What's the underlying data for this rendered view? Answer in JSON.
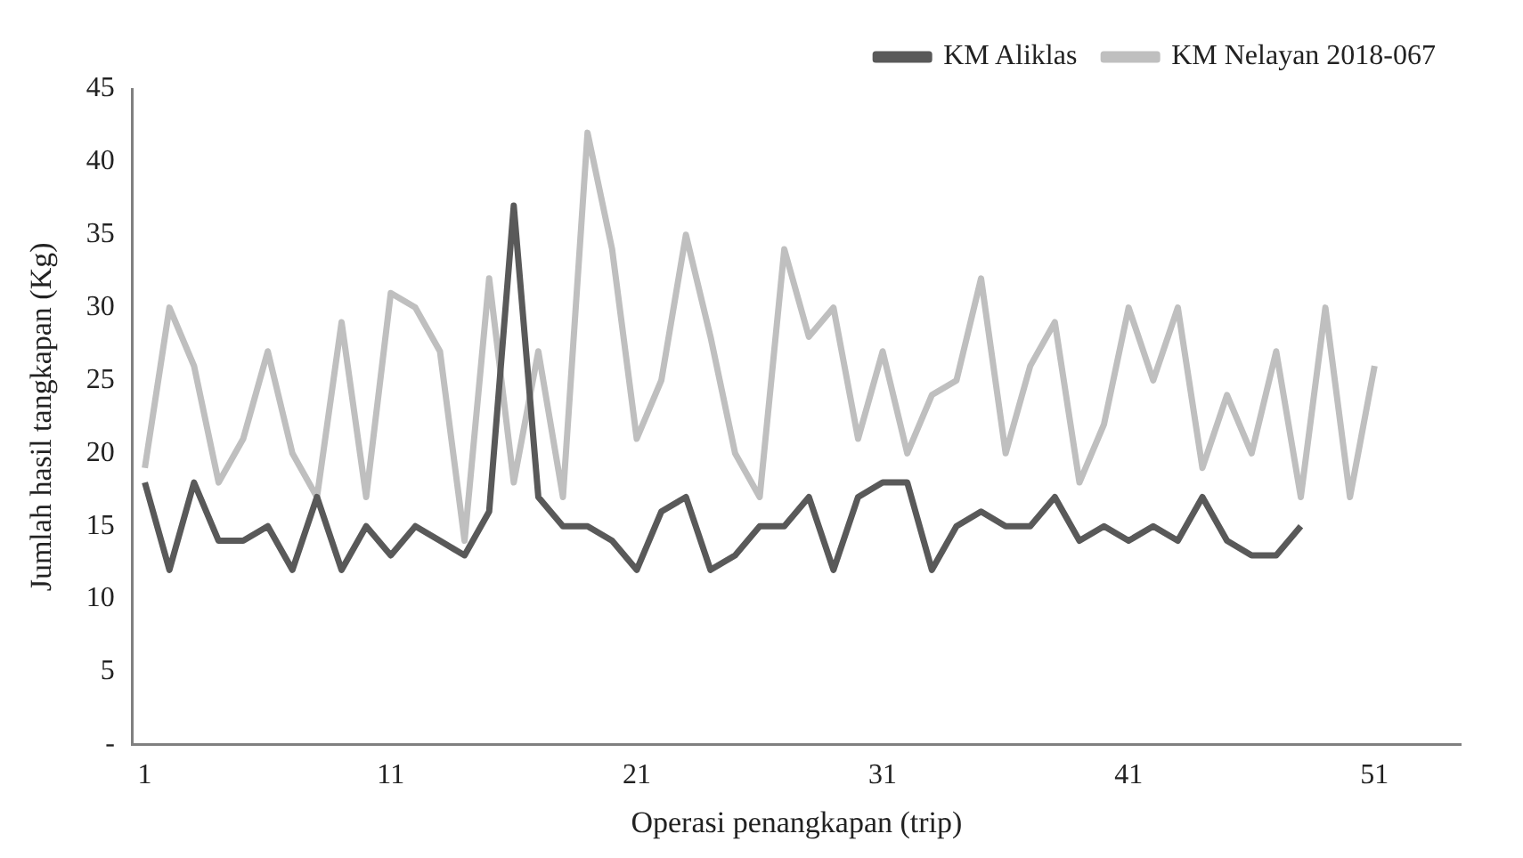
{
  "chart_data": {
    "type": "line",
    "xlabel": "Operasi penangkapan (trip)",
    "ylabel": "Jumlah hasil tangkapan (Kg)",
    "xlim": [
      0.5,
      54.5
    ],
    "xticks": [
      1,
      11,
      21,
      31,
      41,
      51
    ],
    "ylim": [
      0,
      45
    ],
    "yticks": [
      {
        "value": 0,
        "label": "-"
      },
      5,
      10,
      15,
      20,
      25,
      30,
      35,
      40,
      45
    ],
    "grid": false,
    "legend": "top right",
    "marker": "none",
    "line_style": "solid",
    "series": [
      {
        "name": "KM Aliklas",
        "color": "#595959",
        "x": [
          1,
          2,
          3,
          4,
          5,
          6,
          7,
          8,
          9,
          10,
          11,
          12,
          13,
          14,
          15,
          16,
          17,
          18,
          19,
          20,
          21,
          22,
          23,
          24,
          25,
          26,
          27,
          28,
          29,
          30,
          31,
          32,
          33,
          34,
          35,
          36,
          37,
          38,
          39,
          40,
          41,
          42,
          43,
          44,
          45,
          46,
          47,
          48
        ],
        "values": [
          18,
          12,
          18,
          14,
          14,
          15,
          12,
          17,
          12,
          15,
          13,
          15,
          14,
          13,
          16,
          37,
          17,
          15,
          15,
          14,
          12,
          16,
          17,
          12,
          13,
          15,
          15,
          17,
          12,
          17,
          18,
          18,
          12,
          15,
          16,
          15,
          15,
          17,
          14,
          15,
          14,
          15,
          14,
          17,
          14,
          13,
          13,
          15
        ]
      },
      {
        "name": "KM Nelayan 2018-067",
        "color": "#bfbfbf",
        "x": [
          1,
          2,
          3,
          4,
          5,
          6,
          7,
          8,
          9,
          10,
          11,
          12,
          13,
          14,
          15,
          16,
          17,
          18,
          19,
          20,
          21,
          22,
          23,
          24,
          25,
          26,
          27,
          28,
          29,
          30,
          31,
          32,
          33,
          34,
          35,
          36,
          37,
          38,
          39,
          40,
          41,
          42,
          43,
          44,
          45,
          46,
          47,
          48,
          49,
          50,
          51
        ],
        "values": [
          19,
          30,
          26,
          18,
          21,
          27,
          20,
          17,
          29,
          17,
          31,
          30,
          27,
          14,
          32,
          18,
          27,
          17,
          42,
          34,
          21,
          25,
          35,
          28,
          20,
          17,
          34,
          28,
          30,
          21,
          27,
          20,
          24,
          25,
          32,
          20,
          26,
          29,
          18,
          22,
          30,
          25,
          30,
          19,
          24,
          20,
          27,
          17,
          30,
          17,
          26
        ]
      }
    ]
  }
}
